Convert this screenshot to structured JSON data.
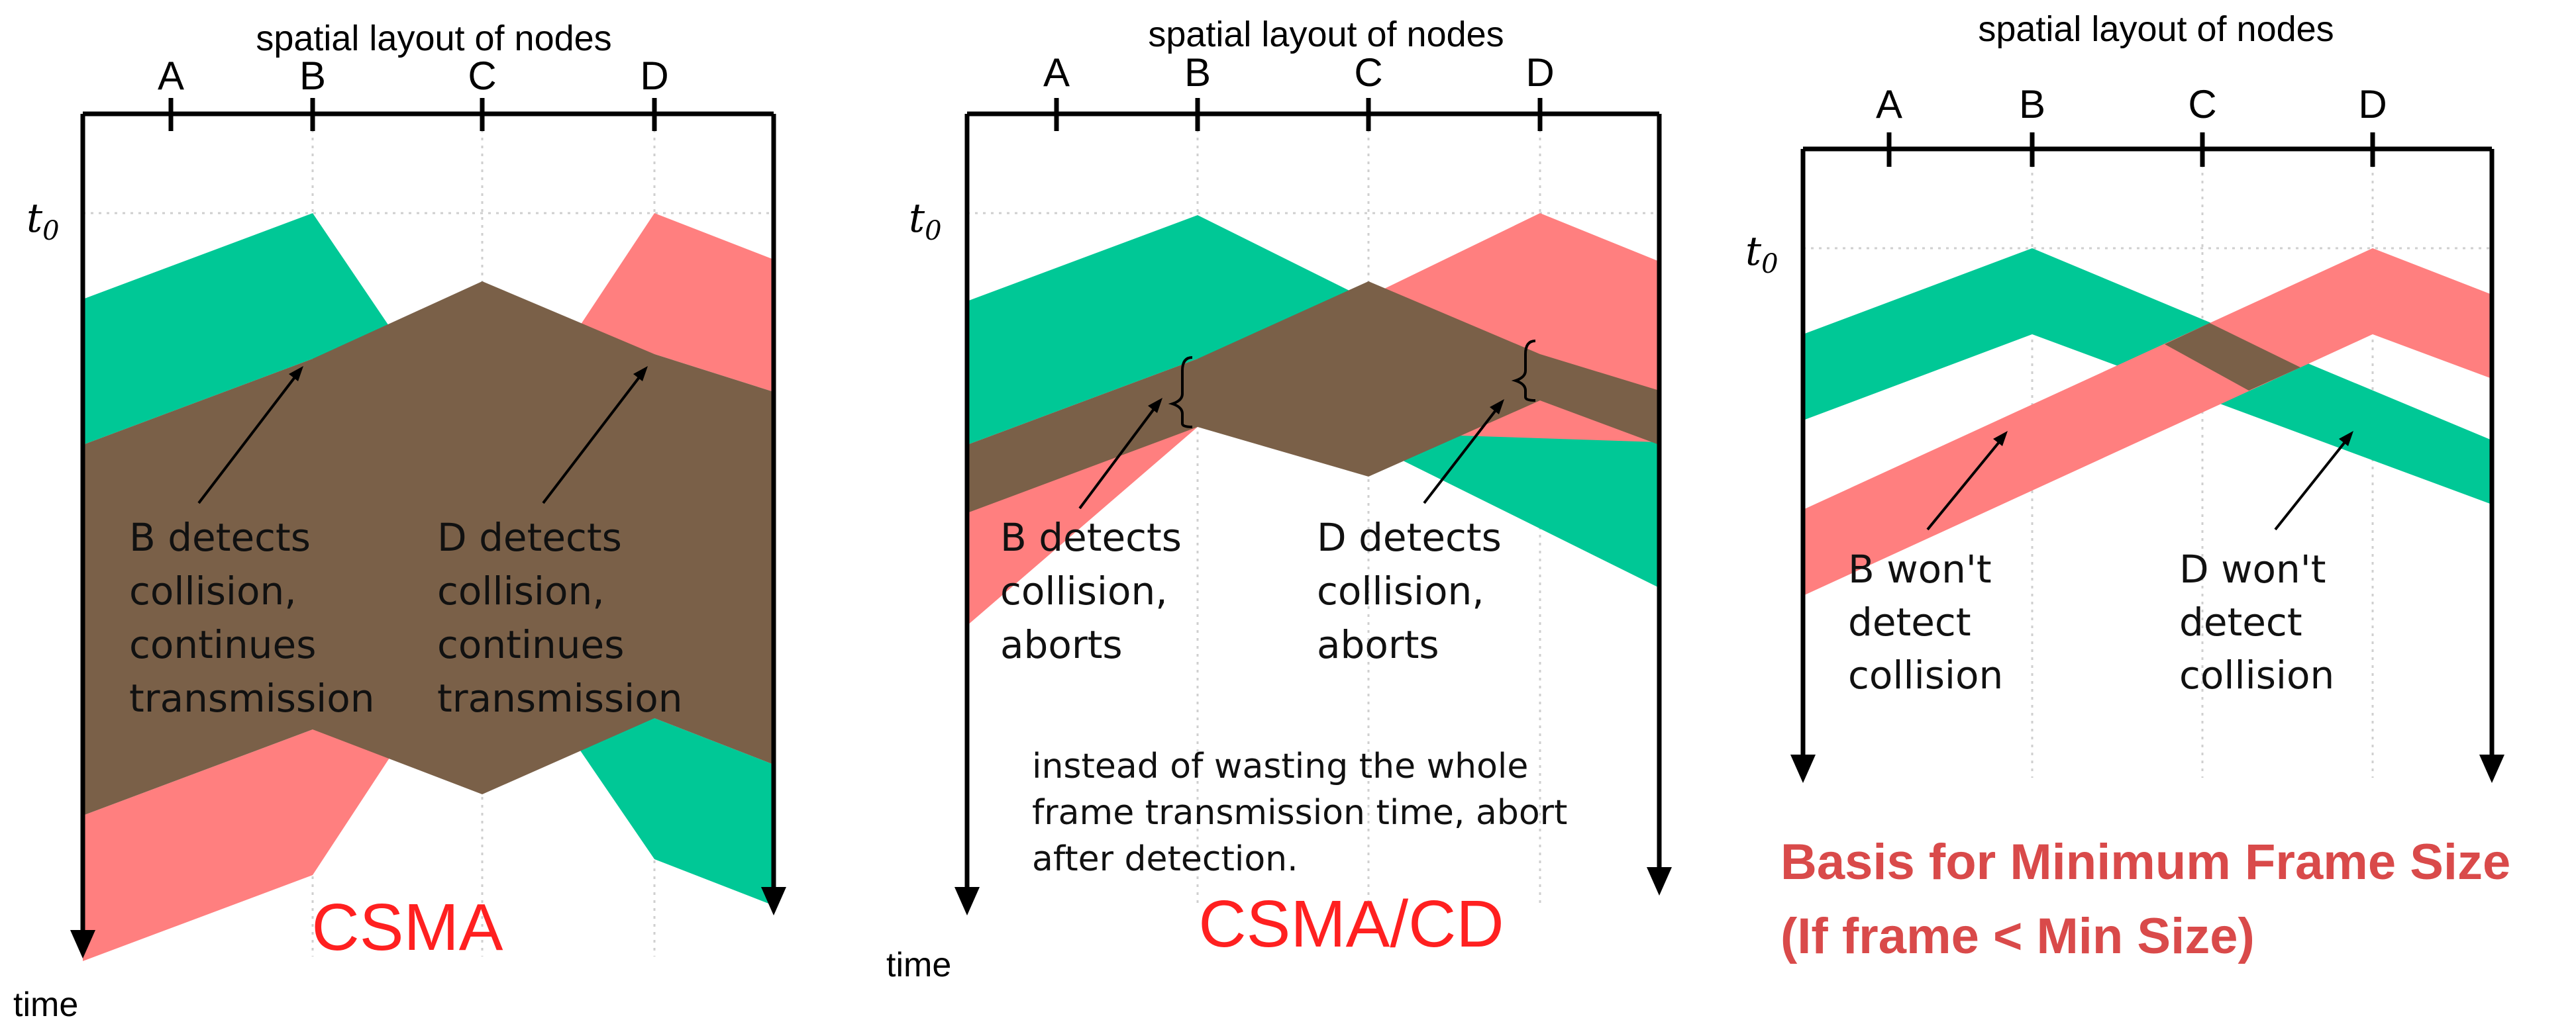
{
  "colors": {
    "green": "#00C896",
    "red": "#FF7F7F",
    "overlap": "#7A6048",
    "axis": "#000000",
    "caption": "#FF2020",
    "basis": "#D94A4A"
  },
  "nodes": [
    "A",
    "B",
    "C",
    "D"
  ],
  "time_label": "time",
  "t0_label": "t",
  "t0_sub": "0",
  "panels": [
    {
      "layout_title": "spatial layout of nodes",
      "caption": "CSMA",
      "note_b": [
        "B detects",
        "collision,",
        "continues",
        "transmission"
      ],
      "note_d": [
        "D detects",
        "collision,",
        "continues",
        "transmission"
      ]
    },
    {
      "layout_title": "spatial layout of nodes",
      "caption": "CSMA/CD",
      "note_b": [
        "B detects",
        "collision,",
        "aborts"
      ],
      "note_d": [
        "D detects",
        "collision,",
        "aborts"
      ],
      "extra_note": [
        "instead of wasting the whole",
        "frame transmission time, abort",
        "after detection."
      ]
    },
    {
      "layout_title": "spatial layout of nodes",
      "note_b": [
        "B won't",
        "detect",
        "collision"
      ],
      "note_d": [
        "D won't",
        "detect",
        "collision"
      ],
      "basis": [
        "Basis for Minimum Frame Size",
        "(If frame < Min Size)"
      ]
    }
  ]
}
